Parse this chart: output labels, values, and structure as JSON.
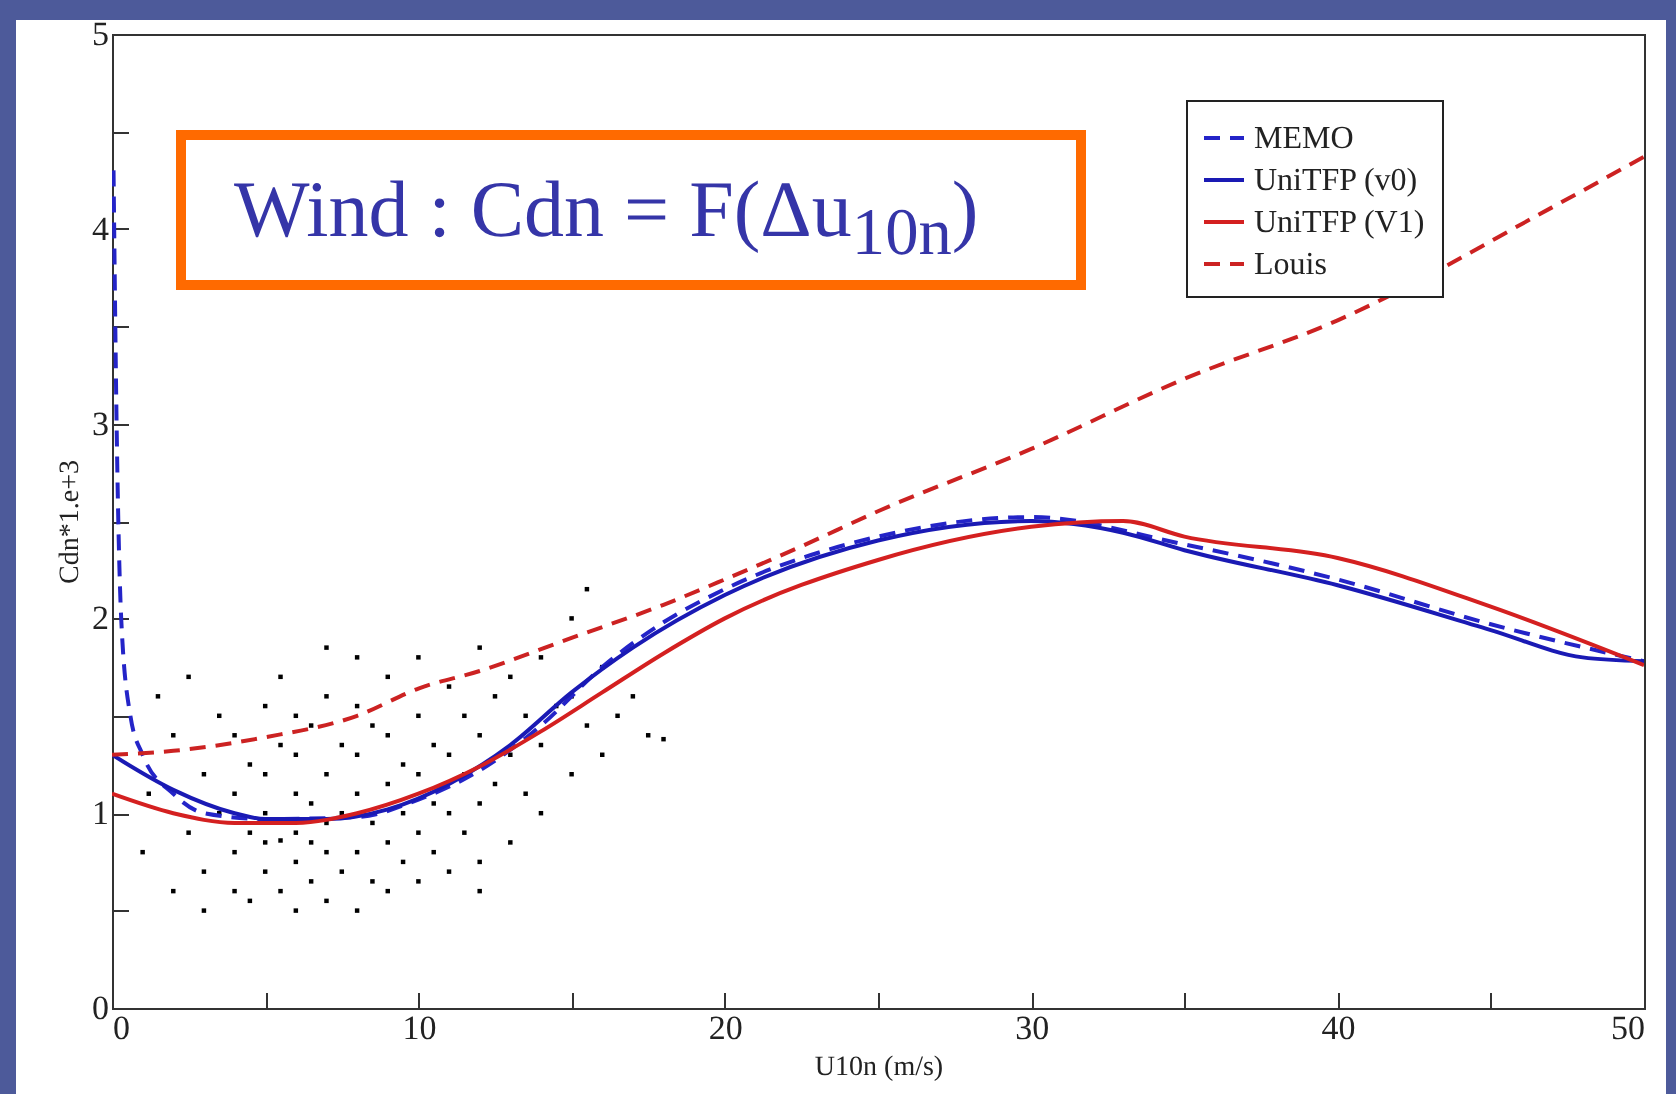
{
  "chart_data": {
    "type": "line",
    "title": "Wind : Cdn = F(Δu$_{10n}$)",
    "xlabel": "U10n (m/s)",
    "ylabel": "Cdn*1.e+3",
    "xlim": [
      0,
      50
    ],
    "ylim": [
      0,
      5
    ],
    "xticks": [
      0,
      {
        "value": 5,
        "label": null
      },
      10,
      {
        "value": 15,
        "label": null
      },
      20,
      {
        "value": 25,
        "label": null
      },
      30,
      {
        "value": 35,
        "label": null
      },
      40,
      {
        "value": 45,
        "label": null
      },
      50
    ],
    "yticks": [
      0,
      {
        "value": 0.5,
        "label": null
      },
      1,
      {
        "value": 1.5,
        "label": null
      },
      2,
      {
        "value": 2.5,
        "label": null
      },
      3,
      {
        "value": 3.5,
        "label": null
      },
      4,
      {
        "value": 4.5,
        "label": null
      },
      5
    ],
    "legend": "top right",
    "series": [
      {
        "type": "scatter",
        "color": "#000000",
        "x": [
          1.5,
          1,
          1.2,
          2,
          2,
          2.5,
          2.5,
          3,
          3,
          3,
          3.5,
          3.5,
          4,
          4,
          4,
          4,
          4.5,
          4.5,
          4.5,
          5,
          5,
          5,
          5,
          5,
          5.5,
          5.5,
          5.5,
          5.5,
          6,
          6,
          6,
          6,
          6,
          6,
          6.5,
          6.5,
          6.5,
          6.5,
          7,
          7,
          7,
          7,
          7,
          7,
          7.5,
          7.5,
          7.5,
          8,
          8,
          8,
          8,
          8,
          8,
          8.5,
          8.5,
          8.5,
          9,
          9,
          9,
          9,
          9,
          9.5,
          9.5,
          9.5,
          10,
          10,
          10,
          10,
          10,
          10.5,
          10.5,
          10.5,
          11,
          11,
          11,
          11,
          11.5,
          11.5,
          11.5,
          12,
          12,
          12,
          12,
          12.5,
          12.5,
          13,
          13,
          13,
          13.5,
          13.5,
          14,
          14,
          14,
          14.5,
          15,
          15,
          15,
          15.5,
          16,
          16,
          16.5,
          17,
          17.5,
          18,
          15.5,
          12
        ],
        "values": [
          1.6,
          0.8,
          1.1,
          0.6,
          1.4,
          0.9,
          1.7,
          0.7,
          1.2,
          0.5,
          1.0,
          1.5,
          0.6,
          0.8,
          1.1,
          1.4,
          0.9,
          0.55,
          1.25,
          0.7,
          0.85,
          1.0,
          1.2,
          1.55,
          0.6,
          0.86,
          1.35,
          1.7,
          0.5,
          0.75,
          0.9,
          1.1,
          1.3,
          1.5,
          0.65,
          0.85,
          1.05,
          1.45,
          0.55,
          0.8,
          0.95,
          1.2,
          1.6,
          1.85,
          0.7,
          1.0,
          1.35,
          0.5,
          0.8,
          1.1,
          1.3,
          1.55,
          1.8,
          0.65,
          0.95,
          1.45,
          0.6,
          0.85,
          1.15,
          1.4,
          1.7,
          0.75,
          1.0,
          1.25,
          0.65,
          0.9,
          1.2,
          1.5,
          1.8,
          0.8,
          1.05,
          1.35,
          0.7,
          1.0,
          1.3,
          1.65,
          0.9,
          1.2,
          1.5,
          0.75,
          1.05,
          1.4,
          1.85,
          1.15,
          1.6,
          0.85,
          1.3,
          1.7,
          1.1,
          1.5,
          1.0,
          1.35,
          1.8,
          1.55,
          1.2,
          1.6,
          2.0,
          1.45,
          1.3,
          1.75,
          1.5,
          1.6,
          1.4,
          1.38,
          2.15,
          0.6
        ]
      },
      {
        "name": "MEMO",
        "color": "#2424c8",
        "line_style": "dashed",
        "x": [
          0.05,
          0.15,
          0.3,
          0.6,
          1,
          2,
          3,
          5,
          8,
          10,
          12,
          14,
          16,
          18,
          20,
          25,
          30,
          35,
          40,
          45,
          50
        ],
        "values": [
          4.3,
          3.0,
          2.0,
          1.5,
          1.3,
          1.1,
          1.0,
          0.97,
          0.98,
          1.07,
          1.22,
          1.45,
          1.75,
          1.98,
          2.15,
          2.42,
          2.52,
          2.38,
          2.2,
          1.97,
          1.78
        ]
      },
      {
        "name": "UniTFP (v0)",
        "color": "#1a1ab4",
        "line_style": "solid",
        "x": [
          0,
          2,
          4,
          5,
          7,
          9,
          11,
          13,
          15,
          17,
          20,
          25,
          30,
          33,
          35,
          40,
          45,
          48,
          50
        ],
        "values": [
          1.3,
          1.12,
          1.0,
          0.97,
          0.97,
          1.02,
          1.15,
          1.35,
          1.62,
          1.85,
          2.12,
          2.4,
          2.5,
          2.44,
          2.35,
          2.17,
          1.94,
          1.8,
          1.78
        ]
      },
      {
        "name": "UniTFP (V1)",
        "color": "#d42020",
        "line_style": "solid",
        "x": [
          0,
          2,
          4,
          6,
          8,
          10,
          12,
          14,
          16,
          18,
          20,
          25,
          30,
          33,
          35,
          40,
          45,
          50
        ],
        "values": [
          1.1,
          1.0,
          0.95,
          0.95,
          1.0,
          1.1,
          1.24,
          1.42,
          1.62,
          1.82,
          2.0,
          2.3,
          2.47,
          2.5,
          2.42,
          2.31,
          2.06,
          1.76
        ]
      },
      {
        "name": "Louis",
        "color": "#cc2222",
        "line_style": "dashed",
        "x": [
          0,
          2,
          5,
          8,
          10,
          12,
          15,
          18,
          20,
          22.5,
          25,
          30,
          35,
          40,
          47,
          50
        ],
        "values": [
          1.3,
          1.32,
          1.39,
          1.5,
          1.64,
          1.73,
          1.9,
          2.07,
          2.2,
          2.37,
          2.55,
          2.87,
          3.23,
          3.53,
          4.11,
          4.37
        ]
      }
    ]
  }
}
